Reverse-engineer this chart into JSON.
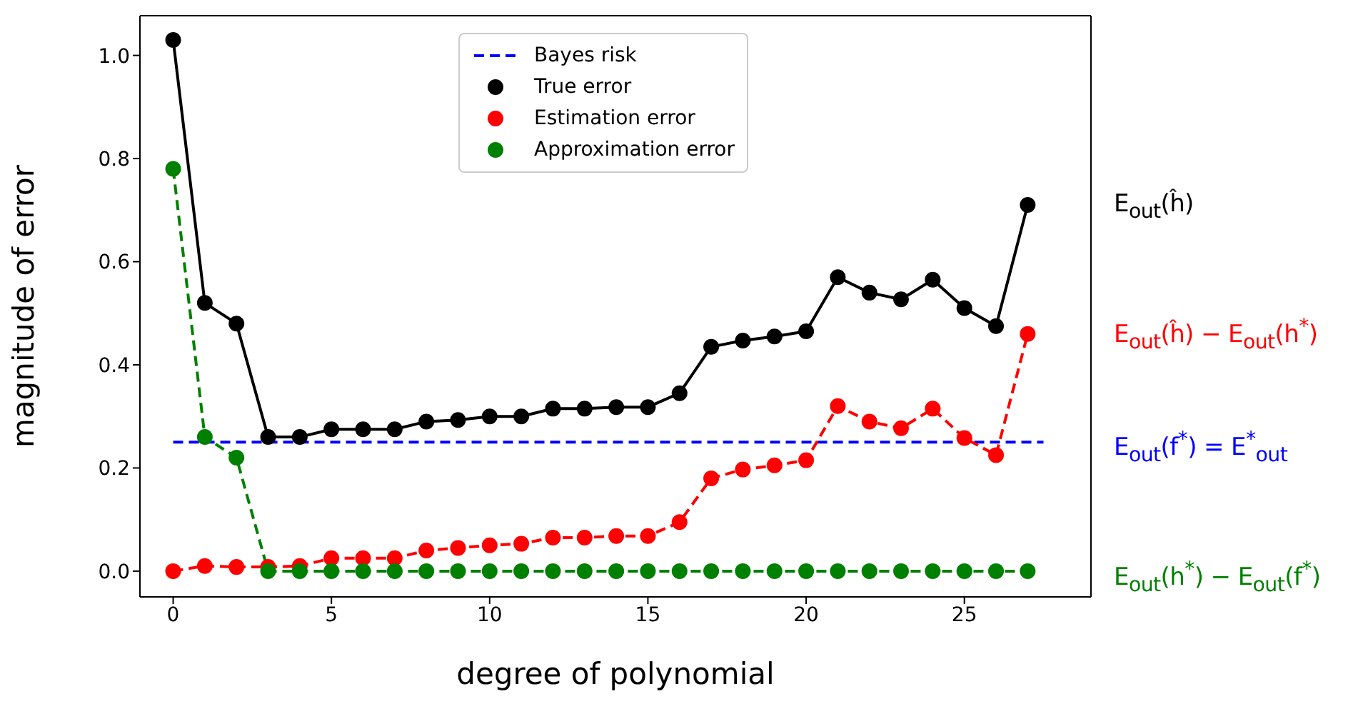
{
  "chart_data": {
    "type": "line",
    "xlabel": "degree of polynomial",
    "ylabel": "magnitude of error",
    "x": [
      0,
      1,
      2,
      3,
      4,
      5,
      6,
      7,
      8,
      9,
      10,
      11,
      12,
      13,
      14,
      15,
      16,
      17,
      18,
      19,
      20,
      21,
      22,
      23,
      24,
      25,
      26,
      27
    ],
    "series": [
      {
        "name": "Bayes risk",
        "color": "#0000ff",
        "x": [
          0,
          27.5
        ],
        "values": [
          0.25,
          0.25
        ],
        "marker": "none",
        "line_style": "dashed"
      },
      {
        "name": "True error",
        "color": "#000000",
        "values": [
          1.03,
          0.52,
          0.48,
          0.26,
          0.26,
          0.275,
          0.275,
          0.275,
          0.29,
          0.293,
          0.3,
          0.3,
          0.315,
          0.315,
          0.318,
          0.318,
          0.345,
          0.435,
          0.447,
          0.455,
          0.465,
          0.57,
          0.54,
          0.527,
          0.565,
          0.51,
          0.475,
          0.71
        ],
        "marker": "circle",
        "line_style": "solid"
      },
      {
        "name": "Estimation error",
        "color": "#ff0000",
        "values": [
          0,
          0.01,
          0.008,
          0.008,
          0.01,
          0.025,
          0.025,
          0.025,
          0.04,
          0.045,
          0.05,
          0.053,
          0.065,
          0.065,
          0.068,
          0.068,
          0.095,
          0.18,
          0.197,
          0.205,
          0.215,
          0.32,
          0.29,
          0.277,
          0.315,
          0.258,
          0.225,
          0.46
        ],
        "marker": "circle",
        "line_style": "dashed"
      },
      {
        "name": "Approximation error",
        "color": "#008000",
        "values": [
          0.78,
          0.26,
          0.22,
          0,
          0,
          0,
          0,
          0,
          0,
          0,
          0,
          0,
          0,
          0,
          0,
          0,
          0,
          0,
          0,
          0,
          0,
          0,
          0,
          0,
          0,
          0,
          0,
          0
        ],
        "marker": "circle",
        "line_style": "dashed"
      }
    ],
    "xlim": [
      -1.05,
      29
    ],
    "xticks": [
      0,
      5,
      10,
      15,
      20,
      25
    ],
    "ylim": [
      -0.05,
      1.077
    ],
    "yticks": [
      {
        "value": 0,
        "label": "0.0"
      },
      0.2,
      0.4,
      0.6,
      0.8,
      {
        "value": 1,
        "label": "1.0"
      }
    ],
    "legend": "top",
    "annotations": [
      "E$_{out}$(ĥ)",
      "E$_{out}$(ĥ) − E$_{out}$(h$^{*}$)",
      "E$_{out}$(f$^{*}$) = E$^{*}$$_{out}$",
      "E$_{out}$(h$^{*}$) − E$_{out}$(f$^{*}$)"
    ]
  }
}
